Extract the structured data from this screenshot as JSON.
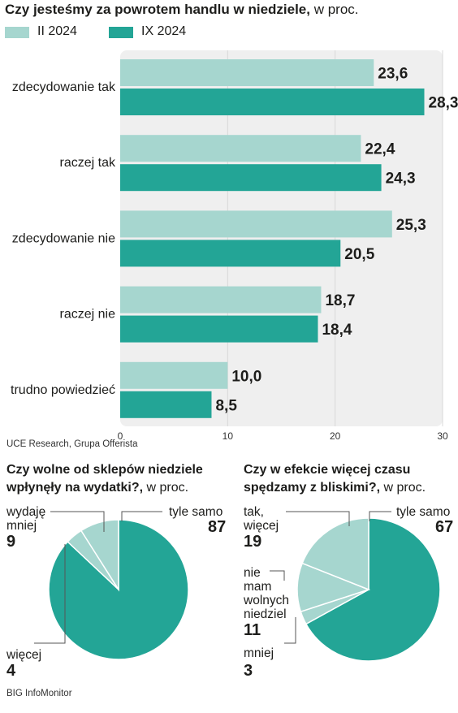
{
  "colors": {
    "light": "#a6d6cf",
    "dark": "#23a596",
    "panel": "#efefef",
    "grid": "#d8d8d8",
    "leader": "#555555"
  },
  "title": {
    "main": "Czy jesteśmy za powrotem handlu w niedziele,",
    "unit": " w proc."
  },
  "legend": {
    "light_label": "II 2024",
    "dark_label": "IX 2024"
  },
  "chart_data": [
    {
      "type": "bar",
      "orientation": "horizontal",
      "title": "Czy jesteśmy za powrotem handlu w niedziele, w proc.",
      "categories": [
        "zdecydowanie tak",
        "raczej tak",
        "zdecydowanie nie",
        "raczej nie",
        "trudno powiedzieć"
      ],
      "series": [
        {
          "name": "II 2024",
          "values": [
            23.6,
            22.4,
            25.3,
            18.7,
            10.0
          ],
          "labels": [
            "23,6",
            "22,4",
            "25,3",
            "18,7",
            "10,0"
          ]
        },
        {
          "name": "IX 2024",
          "values": [
            28.3,
            24.3,
            20.5,
            18.4,
            8.5
          ],
          "labels": [
            "28,3",
            "24,3",
            "20,5",
            "18,4",
            "8,5"
          ]
        }
      ],
      "xlim": [
        0,
        30
      ],
      "ticks": [
        0,
        10,
        20,
        30
      ],
      "grid": true,
      "source": "UCE Research, Grupa Offerista"
    },
    {
      "type": "pie",
      "title": "Czy wolne od sklepów niedziele wpłynęły na wydatki?,",
      "unit": " w proc.",
      "slices": [
        {
          "label": "tyle samo",
          "value": 87,
          "shade": "dark"
        },
        {
          "label": "więcej",
          "value": 4,
          "shade": "light"
        },
        {
          "label": "wydaję mniej",
          "value": 9,
          "shade": "light"
        }
      ]
    },
    {
      "type": "pie",
      "title": "Czy w efekcie więcej czasu spędzamy z bliskimi?,",
      "unit": " w proc.",
      "slices": [
        {
          "label": "tyle samo",
          "value": 67,
          "shade": "dark"
        },
        {
          "label": "mniej",
          "value": 3,
          "shade": "light"
        },
        {
          "label": "nie mam wolnych niedziel",
          "value": 11,
          "shade": "light"
        },
        {
          "label": "tak, więcej",
          "value": 19,
          "shade": "light"
        }
      ],
      "source": "BIG InfoMonitor"
    }
  ],
  "pie1": {
    "label_mniej": [
      "wydaję",
      "mniej"
    ],
    "value_mniej": "9",
    "label_tyle": "tyle samo",
    "value_tyle": "87",
    "label_wiecej": "więcej",
    "value_wiecej": "4"
  },
  "pie2": {
    "label_tak": [
      "tak,",
      "więcej"
    ],
    "value_tak": "19",
    "label_tyle": "tyle samo",
    "value_tyle": "67",
    "label_nie": [
      "nie",
      "mam",
      "wolnych",
      "niedziel"
    ],
    "value_nie": "11",
    "label_mniej": "mniej",
    "value_mniej": "3"
  }
}
